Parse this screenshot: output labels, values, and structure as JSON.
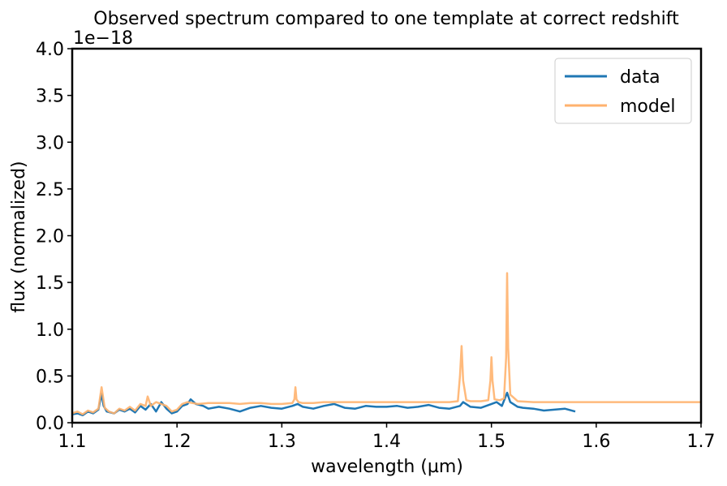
{
  "chart_data": {
    "type": "line",
    "title": "Observed spectrum compared to one template at correct redshift",
    "xlabel": "wavelength (µm)",
    "ylabel": "flux (normalized)",
    "y_offset_label": "1e−18",
    "xlim": [
      1.1,
      1.7
    ],
    "ylim": [
      0.0,
      4.0
    ],
    "x_ticks": [
      "1.1",
      "1.2",
      "1.3",
      "1.4",
      "1.5",
      "1.6",
      "1.7"
    ],
    "y_ticks": [
      "0.0",
      "0.5",
      "1.0",
      "1.5",
      "2.0",
      "2.5",
      "3.0",
      "3.5",
      "4.0"
    ],
    "grid": false,
    "legend_position": "top-right",
    "series": [
      {
        "name": "data",
        "color": "#1f77b4",
        "x": [
          1.1,
          1.105,
          1.11,
          1.115,
          1.12,
          1.125,
          1.128,
          1.13,
          1.133,
          1.14,
          1.145,
          1.15,
          1.155,
          1.16,
          1.165,
          1.17,
          1.175,
          1.18,
          1.185,
          1.19,
          1.195,
          1.2,
          1.205,
          1.21,
          1.213,
          1.218,
          1.225,
          1.23,
          1.24,
          1.25,
          1.26,
          1.27,
          1.28,
          1.29,
          1.3,
          1.31,
          1.315,
          1.32,
          1.33,
          1.34,
          1.35,
          1.36,
          1.37,
          1.38,
          1.39,
          1.4,
          1.41,
          1.42,
          1.43,
          1.44,
          1.45,
          1.46,
          1.47,
          1.473,
          1.48,
          1.49,
          1.5,
          1.505,
          1.51,
          1.515,
          1.518,
          1.525,
          1.53,
          1.54,
          1.55,
          1.56,
          1.57,
          1.58
        ],
        "y": [
          0.09,
          0.1,
          0.08,
          0.12,
          0.1,
          0.14,
          0.31,
          0.18,
          0.12,
          0.1,
          0.14,
          0.12,
          0.15,
          0.11,
          0.18,
          0.14,
          0.2,
          0.12,
          0.22,
          0.15,
          0.1,
          0.12,
          0.18,
          0.2,
          0.25,
          0.2,
          0.18,
          0.15,
          0.17,
          0.15,
          0.12,
          0.16,
          0.18,
          0.16,
          0.15,
          0.18,
          0.2,
          0.17,
          0.15,
          0.18,
          0.2,
          0.16,
          0.15,
          0.18,
          0.17,
          0.17,
          0.18,
          0.16,
          0.17,
          0.19,
          0.16,
          0.15,
          0.18,
          0.22,
          0.17,
          0.16,
          0.2,
          0.22,
          0.18,
          0.32,
          0.22,
          0.17,
          0.16,
          0.15,
          0.13,
          0.14,
          0.15,
          0.12
        ]
      },
      {
        "name": "model",
        "color": "#ffb26e",
        "x": [
          1.1,
          1.105,
          1.11,
          1.115,
          1.12,
          1.125,
          1.128,
          1.131,
          1.135,
          1.14,
          1.145,
          1.15,
          1.155,
          1.16,
          1.165,
          1.17,
          1.172,
          1.175,
          1.18,
          1.185,
          1.19,
          1.195,
          1.2,
          1.205,
          1.21,
          1.215,
          1.22,
          1.23,
          1.24,
          1.25,
          1.26,
          1.27,
          1.28,
          1.29,
          1.3,
          1.31,
          1.312,
          1.313,
          1.314,
          1.316,
          1.32,
          1.33,
          1.34,
          1.35,
          1.36,
          1.37,
          1.38,
          1.39,
          1.4,
          1.41,
          1.42,
          1.43,
          1.44,
          1.45,
          1.46,
          1.468,
          1.47,
          1.4715,
          1.473,
          1.476,
          1.48,
          1.49,
          1.497,
          1.499,
          1.5,
          1.501,
          1.503,
          1.508,
          1.512,
          1.514,
          1.515,
          1.516,
          1.518,
          1.525,
          1.54,
          1.56,
          1.58,
          1.6,
          1.62,
          1.64,
          1.66,
          1.68,
          1.7
        ],
        "y": [
          0.1,
          0.12,
          0.09,
          0.13,
          0.11,
          0.15,
          0.38,
          0.16,
          0.12,
          0.1,
          0.15,
          0.13,
          0.17,
          0.13,
          0.2,
          0.18,
          0.28,
          0.18,
          0.22,
          0.2,
          0.18,
          0.12,
          0.14,
          0.2,
          0.22,
          0.21,
          0.2,
          0.21,
          0.21,
          0.21,
          0.2,
          0.21,
          0.21,
          0.2,
          0.2,
          0.21,
          0.25,
          0.38,
          0.25,
          0.22,
          0.21,
          0.21,
          0.22,
          0.22,
          0.22,
          0.22,
          0.22,
          0.22,
          0.22,
          0.22,
          0.22,
          0.22,
          0.22,
          0.22,
          0.22,
          0.23,
          0.5,
          0.82,
          0.45,
          0.24,
          0.23,
          0.23,
          0.24,
          0.45,
          0.7,
          0.45,
          0.25,
          0.24,
          0.26,
          0.7,
          1.6,
          0.8,
          0.3,
          0.23,
          0.22,
          0.22,
          0.22,
          0.22,
          0.22,
          0.22,
          0.22,
          0.22,
          0.22
        ]
      }
    ]
  }
}
